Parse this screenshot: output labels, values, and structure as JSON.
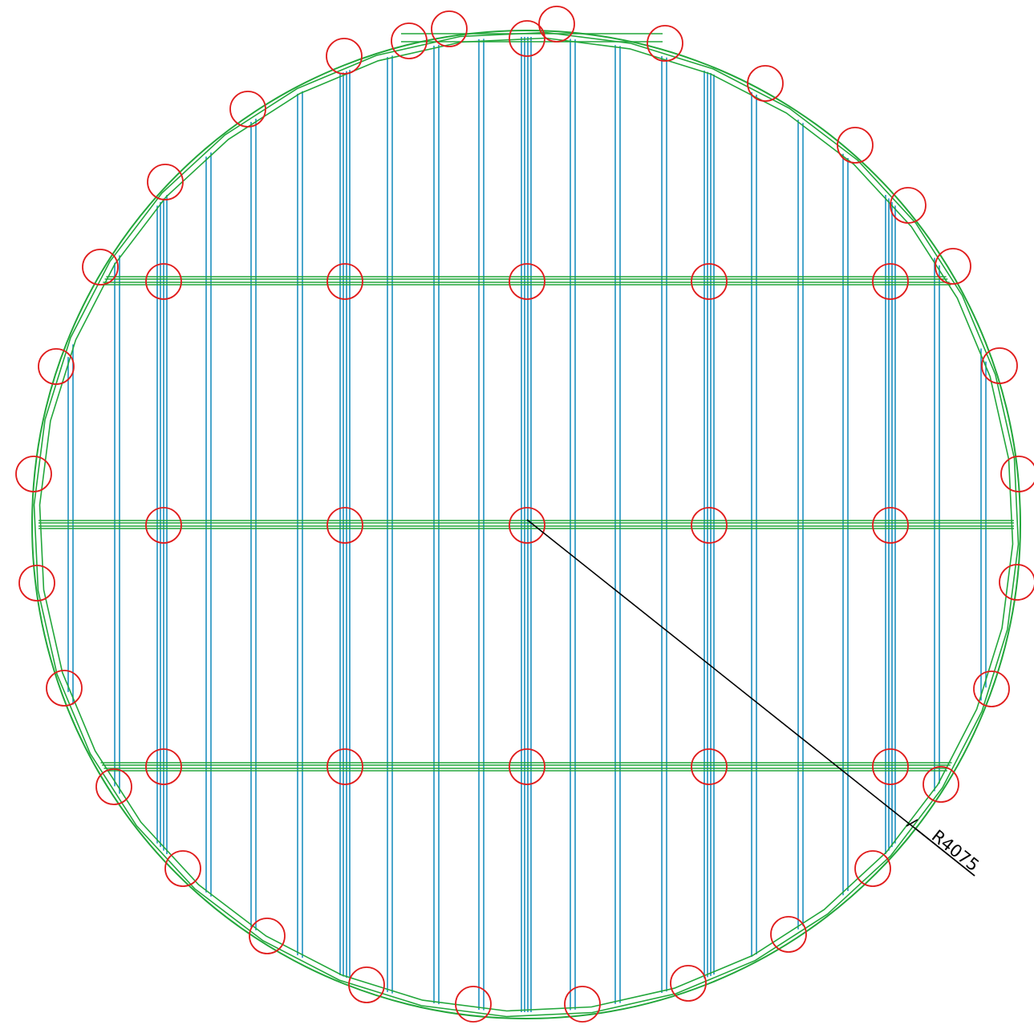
{
  "drawing": {
    "radius_label": "R4075",
    "colors": {
      "outline": "#22a63a",
      "beam": "#1c8fbf",
      "marker": "#e01b1b",
      "dimension": "#000000",
      "background": "#ffffff"
    }
  }
}
